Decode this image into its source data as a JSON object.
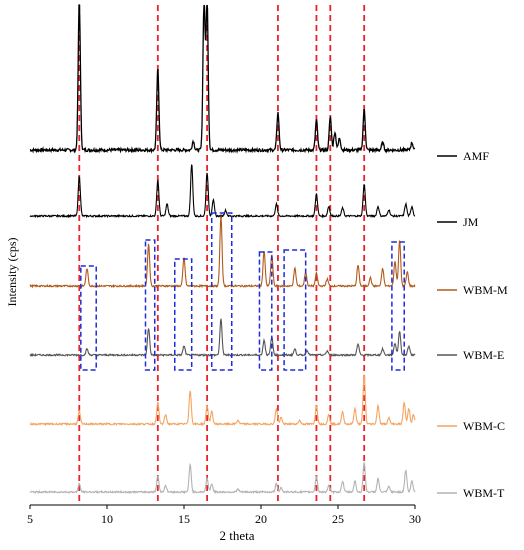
{
  "chart_data": {
    "type": "line",
    "xlabel": "2 theta",
    "ylabel": "Intensity (cps)",
    "xlim": [
      5,
      30
    ],
    "xticks": [
      5,
      10,
      15,
      20,
      25,
      30
    ],
    "reference_lines_2theta": [
      8.2,
      13.3,
      16.5,
      21.1,
      23.6,
      24.5,
      26.7
    ],
    "reference_line_color": "#e8232a",
    "highlight_box_color": "#1f2bd6",
    "highlight_regions_2theta": [
      [
        8.3,
        9.3
      ],
      [
        12.5,
        13.1
      ],
      [
        14.4,
        15.5
      ],
      [
        16.8,
        18.1
      ],
      [
        19.9,
        20.7
      ],
      [
        21.5,
        22.9
      ],
      [
        28.5,
        29.3
      ]
    ],
    "series": [
      {
        "name": "AMF",
        "color": "#000000",
        "peaks": [
          [
            8.2,
            1.0
          ],
          [
            13.3,
            0.54
          ],
          [
            15.6,
            0.06
          ],
          [
            16.3,
            1.0
          ],
          [
            16.5,
            1.0
          ],
          [
            21.1,
            0.25
          ],
          [
            23.6,
            0.2
          ],
          [
            24.5,
            0.22
          ],
          [
            24.8,
            0.12
          ],
          [
            25.1,
            0.08
          ],
          [
            26.7,
            0.27
          ],
          [
            27.9,
            0.05
          ],
          [
            29.8,
            0.05
          ]
        ]
      },
      {
        "name": "JM",
        "color": "#000000",
        "peaks": [
          [
            8.2,
            0.5
          ],
          [
            13.3,
            0.45
          ],
          [
            13.9,
            0.15
          ],
          [
            15.5,
            0.65
          ],
          [
            16.5,
            0.55
          ],
          [
            16.9,
            0.2
          ],
          [
            17.7,
            0.07
          ],
          [
            21.0,
            0.15
          ],
          [
            23.6,
            0.28
          ],
          [
            24.4,
            0.12
          ],
          [
            25.3,
            0.1
          ],
          [
            26.7,
            0.4
          ],
          [
            27.6,
            0.12
          ],
          [
            28.3,
            0.08
          ],
          [
            29.4,
            0.15
          ],
          [
            29.8,
            0.12
          ]
        ]
      },
      {
        "name": "WBM-M",
        "color": "#b05a1a",
        "peaks": [
          [
            8.7,
            0.25
          ],
          [
            12.7,
            0.6
          ],
          [
            15.0,
            0.4
          ],
          [
            17.4,
            1.0
          ],
          [
            20.2,
            0.5
          ],
          [
            20.7,
            0.45
          ],
          [
            22.2,
            0.25
          ],
          [
            22.9,
            0.2
          ],
          [
            23.6,
            0.18
          ],
          [
            24.3,
            0.1
          ],
          [
            26.3,
            0.3
          ],
          [
            27.1,
            0.12
          ],
          [
            27.9,
            0.25
          ],
          [
            28.7,
            0.35
          ],
          [
            29.0,
            0.65
          ],
          [
            29.5,
            0.2
          ]
        ]
      },
      {
        "name": "WBM-E",
        "color": "#555555",
        "peaks": [
          [
            8.7,
            0.1
          ],
          [
            12.7,
            0.45
          ],
          [
            15.0,
            0.15
          ],
          [
            17.4,
            0.6
          ],
          [
            20.2,
            0.25
          ],
          [
            20.7,
            0.3
          ],
          [
            22.2,
            0.1
          ],
          [
            23.0,
            0.08
          ],
          [
            24.3,
            0.07
          ],
          [
            26.3,
            0.18
          ],
          [
            27.9,
            0.1
          ],
          [
            28.7,
            0.2
          ],
          [
            29.0,
            0.4
          ],
          [
            29.6,
            0.15
          ]
        ]
      },
      {
        "name": "WBM-C",
        "color": "#f4a460",
        "peaks": [
          [
            8.2,
            0.2
          ],
          [
            13.3,
            0.35
          ],
          [
            13.8,
            0.15
          ],
          [
            15.4,
            0.55
          ],
          [
            16.5,
            0.3
          ],
          [
            16.8,
            0.2
          ],
          [
            18.5,
            0.06
          ],
          [
            21.0,
            0.25
          ],
          [
            21.3,
            0.1
          ],
          [
            22.5,
            0.06
          ],
          [
            23.6,
            0.3
          ],
          [
            24.4,
            0.15
          ],
          [
            25.3,
            0.2
          ],
          [
            26.1,
            0.25
          ],
          [
            26.7,
            0.8
          ],
          [
            27.6,
            0.3
          ],
          [
            28.3,
            0.1
          ],
          [
            29.3,
            0.35
          ],
          [
            29.6,
            0.25
          ],
          [
            29.9,
            0.15
          ]
        ]
      },
      {
        "name": "WBM-T",
        "color": "#b3b3b3",
        "peaks": [
          [
            8.2,
            0.15
          ],
          [
            13.3,
            0.3
          ],
          [
            13.8,
            0.12
          ],
          [
            15.4,
            0.5
          ],
          [
            16.5,
            0.25
          ],
          [
            16.8,
            0.15
          ],
          [
            18.5,
            0.05
          ],
          [
            21.0,
            0.15
          ],
          [
            21.3,
            0.08
          ],
          [
            23.6,
            0.28
          ],
          [
            24.4,
            0.12
          ],
          [
            25.3,
            0.2
          ],
          [
            26.1,
            0.2
          ],
          [
            26.7,
            0.55
          ],
          [
            27.6,
            0.25
          ],
          [
            28.3,
            0.1
          ],
          [
            29.4,
            0.4
          ],
          [
            29.8,
            0.2
          ]
        ]
      }
    ]
  }
}
